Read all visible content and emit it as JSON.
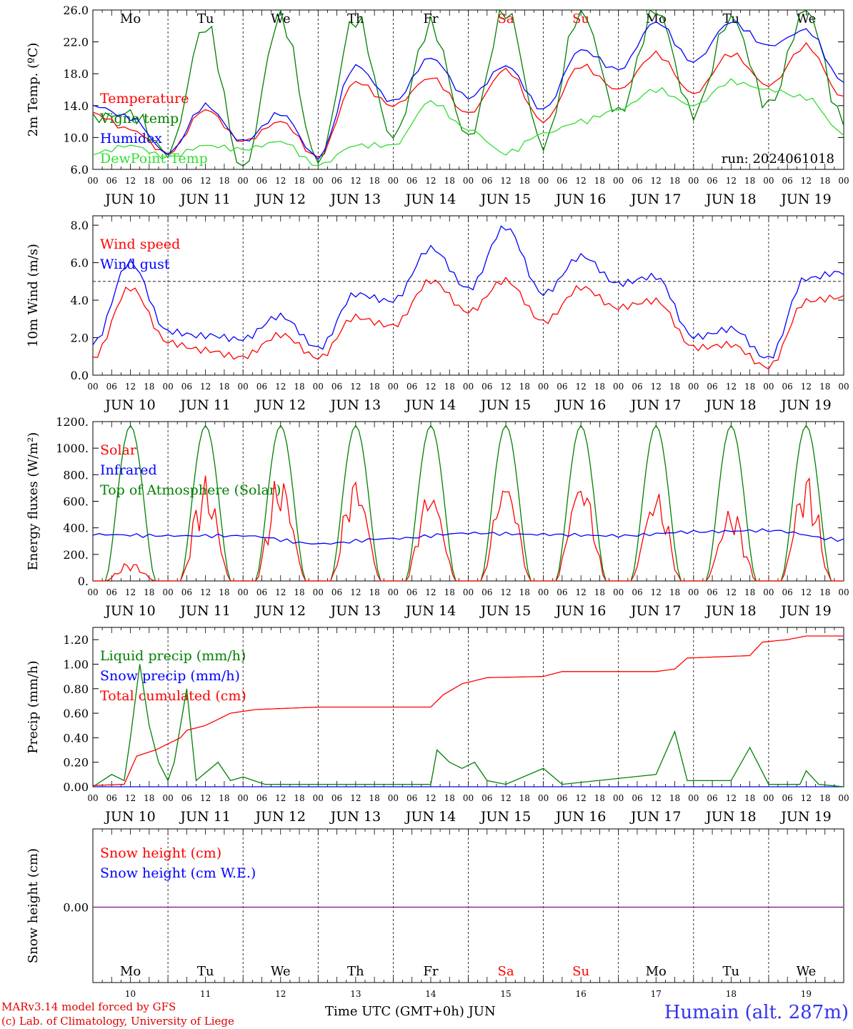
{
  "chart_data": [
    {
      "type": "line",
      "panel": "temperature",
      "ylabel": "2m Temp. (ºC)",
      "ylim": [
        6,
        26
      ],
      "yticks": [
        "26.0",
        "22.0",
        "18.0",
        "14.0",
        "10.0",
        "6.0"
      ],
      "x_hours": [
        0,
        12,
        24,
        36,
        48,
        60,
        72,
        84,
        96,
        108,
        120,
        132,
        144,
        156,
        168,
        180,
        192,
        204,
        216,
        228,
        240
      ],
      "series": [
        {
          "name": "Temperature",
          "color": "#ff0000",
          "values": [
            13,
            11,
            8,
            13.5,
            9.5,
            12,
            7.5,
            17,
            14,
            17.5,
            13,
            18.5,
            12,
            19,
            16,
            20.5,
            15.5,
            20.5,
            16.5,
            21.5,
            15
          ]
        },
        {
          "name": "Vigne temp",
          "color": "#008000",
          "values": [
            12.5,
            13,
            8,
            24,
            6,
            25,
            7,
            25,
            10,
            24,
            10,
            26,
            9,
            26,
            13,
            26,
            13,
            25,
            14,
            26,
            12
          ]
        },
        {
          "name": "Humidex",
          "color": "#0000ff",
          "values": [
            14,
            12.5,
            8,
            14,
            9.5,
            13,
            7.5,
            19,
            14.5,
            20,
            15,
            19,
            13.5,
            21,
            18.5,
            24.5,
            19.5,
            24.5,
            21.5,
            23.5,
            17
          ]
        },
        {
          "name": "DewPoint Temp",
          "color": "#33dd33",
          "values": [
            8,
            9,
            7.5,
            9,
            8.5,
            9.5,
            6.5,
            9,
            9,
            14.5,
            11,
            8,
            10.5,
            12,
            13.5,
            16,
            14,
            17,
            16,
            15,
            10.5
          ]
        }
      ]
    },
    {
      "type": "line",
      "panel": "wind",
      "ylabel": "10m Wind (m/s)",
      "ylim": [
        0,
        8.5
      ],
      "yticks": [
        "8.0",
        "6.0",
        "4.0",
        "2.0",
        "0.0"
      ],
      "reference_line": 5,
      "x_hours": [
        0,
        12,
        24,
        36,
        48,
        60,
        72,
        84,
        96,
        108,
        120,
        132,
        144,
        156,
        168,
        180,
        192,
        204,
        216,
        228,
        240
      ],
      "series": [
        {
          "name": "Wind speed",
          "color": "#ff0000",
          "values": [
            0.8,
            4.5,
            1.8,
            1.5,
            1.0,
            2.0,
            0.8,
            3.2,
            2.8,
            5.0,
            3.2,
            5.0,
            3.0,
            4.8,
            3.5,
            3.8,
            1.5,
            1.8,
            0.5,
            3.8,
            4.0
          ]
        },
        {
          "name": "Wind gust",
          "color": "#0000ff",
          "values": [
            1.5,
            6.0,
            2.5,
            2.2,
            1.8,
            3.0,
            1.5,
            4.5,
            4.0,
            6.6,
            4.5,
            8.0,
            4.5,
            6.3,
            4.7,
            5.2,
            2.2,
            2.6,
            0.8,
            5.0,
            5.5
          ]
        }
      ]
    },
    {
      "type": "line",
      "panel": "energy",
      "ylabel": "Energy fluxes (W/m²)",
      "ylim": [
        0,
        1200
      ],
      "yticks": [
        "1200.",
        "1000.",
        "800.",
        "600.",
        "400.",
        "200.",
        "0."
      ],
      "series": [
        {
          "name": "Solar",
          "color": "#ff0000",
          "daily_peaks": [
            150,
            830,
            880,
            880,
            800,
            890,
            890,
            760,
            610,
            870
          ]
        },
        {
          "name": "Infrared",
          "color": "#0000ff",
          "values_note": "",
          "values": [
            350,
            340,
            340,
            280,
            320,
            360,
            350,
            340,
            370,
            380,
            310
          ]
        },
        {
          "name": "Top of Atmosphere (Solar)",
          "color": "#008000",
          "daily_peak": 1170
        }
      ]
    },
    {
      "type": "line",
      "panel": "precip",
      "ylabel": "Precip (mm/h)",
      "ylim": [
        0,
        1.3
      ],
      "yticks": [
        "1.20",
        "1.00",
        "0.80",
        "0.60",
        "0.40",
        "0.20",
        "0.00"
      ],
      "series": [
        {
          "name": "Liquid precip (mm/h)",
          "color": "#008000",
          "points": [
            [
              0,
              0
            ],
            [
              6,
              0.1
            ],
            [
              10,
              0.05
            ],
            [
              12,
              0.4
            ],
            [
              15,
              1.0
            ],
            [
              18,
              0.5
            ],
            [
              21,
              0.2
            ],
            [
              24,
              0.05
            ],
            [
              26,
              0.2
            ],
            [
              30,
              0.8
            ],
            [
              33,
              0.05
            ],
            [
              40,
              0.2
            ],
            [
              44,
              0.05
            ],
            [
              48,
              0.08
            ],
            [
              55,
              0.02
            ],
            [
              108,
              0.02
            ],
            [
              110,
              0.3
            ],
            [
              114,
              0.2
            ],
            [
              118,
              0.15
            ],
            [
              122,
              0.2
            ],
            [
              126,
              0.05
            ],
            [
              132,
              0.02
            ],
            [
              144,
              0.15
            ],
            [
              150,
              0.02
            ],
            [
              180,
              0.1
            ],
            [
              186,
              0.45
            ],
            [
              190,
              0.05
            ],
            [
              204,
              0.05
            ],
            [
              210,
              0.32
            ],
            [
              216,
              0.02
            ],
            [
              226,
              0.02
            ],
            [
              228,
              0.13
            ],
            [
              232,
              0.02
            ],
            [
              240,
              0
            ]
          ]
        },
        {
          "name": "Snow precip (mm/h)",
          "color": "#0000ff",
          "points": [
            [
              0,
              0
            ],
            [
              240,
              0
            ]
          ]
        },
        {
          "name": "Total cumulated (cm)",
          "color": "#ff0000",
          "points": [
            [
              0,
              0.01
            ],
            [
              10,
              0.02
            ],
            [
              14,
              0.25
            ],
            [
              20,
              0.3
            ],
            [
              28,
              0.4
            ],
            [
              30,
              0.46
            ],
            [
              36,
              0.5
            ],
            [
              44,
              0.6
            ],
            [
              52,
              0.63
            ],
            [
              72,
              0.65
            ],
            [
              108,
              0.65
            ],
            [
              112,
              0.75
            ],
            [
              118,
              0.84
            ],
            [
              126,
              0.89
            ],
            [
              144,
              0.9
            ],
            [
              150,
              0.94
            ],
            [
              180,
              0.94
            ],
            [
              186,
              0.96
            ],
            [
              190,
              1.05
            ],
            [
              200,
              1.06
            ],
            [
              210,
              1.07
            ],
            [
              214,
              1.18
            ],
            [
              222,
              1.2
            ],
            [
              228,
              1.23
            ],
            [
              240,
              1.23
            ]
          ]
        }
      ]
    },
    {
      "type": "line",
      "panel": "snow",
      "ylabel": "Snow height (cm)",
      "yticks": [
        "0.00"
      ],
      "series": [
        {
          "name": "Snow height (cm)",
          "color": "#ff0000",
          "points": [
            [
              0,
              0
            ],
            [
              240,
              0
            ]
          ]
        },
        {
          "name": "Snow height (cm W.E.)",
          "color": "#0000ff",
          "points": [
            [
              0,
              0
            ],
            [
              240,
              0
            ]
          ]
        }
      ]
    }
  ],
  "weekdays": [
    "Mo",
    "Tu",
    "We",
    "Th",
    "Fr",
    "Sa",
    "Su",
    "Mo",
    "Tu",
    "We"
  ],
  "weekday_colors": [
    "#000000",
    "#000000",
    "#000000",
    "#000000",
    "#000000",
    "#ff0000",
    "#ff0000",
    "#000000",
    "#000000",
    "#000000"
  ],
  "hour_ticks": [
    "00",
    "06",
    "12",
    "18"
  ],
  "final_hour_tick": "00",
  "date_labels": [
    "JUN 10",
    "JUN 11",
    "JUN 12",
    "JUN 13",
    "JUN 14",
    "JUN 15",
    "JUN 16",
    "JUN 17",
    "JUN 18",
    "JUN 19"
  ],
  "day_numbers": [
    "10",
    "11",
    "12",
    "13",
    "14",
    "15",
    "16",
    "17",
    "18",
    "19"
  ],
  "run_label": "run: 2024061018",
  "footer": {
    "model": "MARv3.14 model forced by GFS",
    "credit": "(c) Lab. of Climatology, University of Liege",
    "xlabel": "Time UTC (GMT+0h) JUN",
    "station": "Humain (alt. 287m)"
  }
}
